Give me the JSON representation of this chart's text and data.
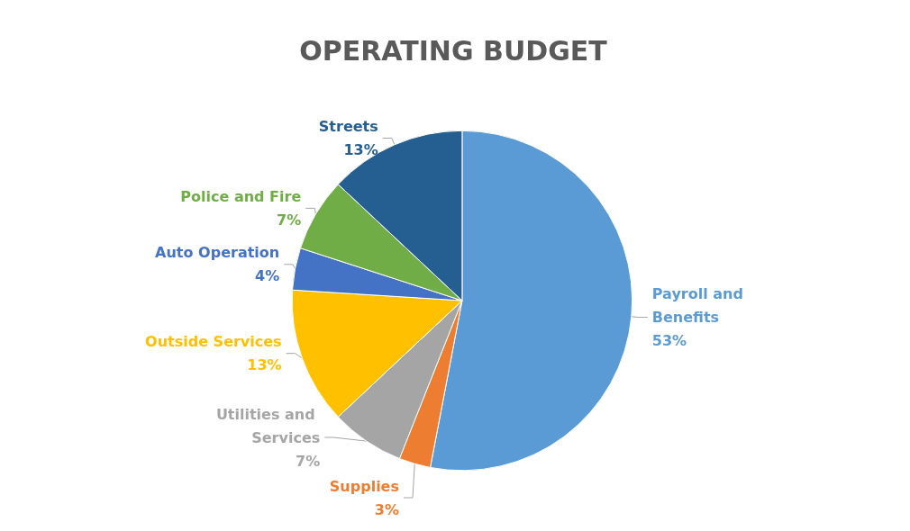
{
  "chart_data": {
    "type": "pie",
    "title": "OPERATING BUDGET",
    "categories": [
      "Payroll and Benefits",
      "Supplies",
      "Utilities and Services",
      "Outside Services",
      "Auto Operation",
      "Police and Fire",
      "Streets"
    ],
    "values": [
      53,
      3,
      7,
      13,
      4,
      7,
      13
    ],
    "colors": [
      "#5b9bd5",
      "#ed7d31",
      "#a5a5a5",
      "#ffc000",
      "#4472c4",
      "#70ad47",
      "#255e91"
    ],
    "value_labels": [
      "53%",
      "3%",
      "7%",
      "13%",
      "4%",
      "7%",
      "13%"
    ],
    "legend": false
  }
}
